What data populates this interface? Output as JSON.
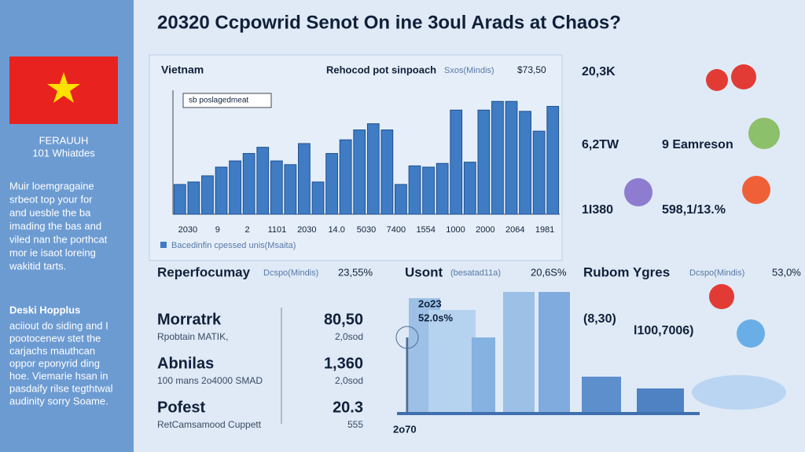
{
  "title": "20320 Ccpowrid Senot On ine 3oul Arads at Chaos?",
  "sidebar": {
    "caption": [
      "FERAUUH",
      "101 Whiatdes"
    ],
    "paragraph1": [
      "Muir loemgragaine",
      "srbeot top your for",
      "and uesble the ba",
      "imading the bas and",
      "viled nan the porthcat",
      "mor ie isaot loreing",
      "wakitid tarts."
    ],
    "heading2": "Deski Hopplus",
    "paragraph2": [
      "aciiout do siding and I",
      "pootocenew stet the",
      "carjachs mauthcan",
      "oppor eponyrid ding",
      "hoe. Viemarie hsan in",
      "pasdaify rilse tegthtwal",
      "audinity sorry Soame."
    ]
  },
  "chart_data": {
    "type": "bar",
    "label_left": "Vietnam",
    "label_center": "Rehocod pot sinpoach",
    "label_unit": "Sxos(Mindis)",
    "label_value": "$73,50",
    "inset_label": "sb poslagedmeat",
    "legend": "Bacedinfin cpessed unis(Msaita)",
    "color": "#3f7cc4",
    "ylim": [
      0,
      100
    ],
    "values": [
      24,
      26,
      31,
      38,
      43,
      49,
      54,
      43,
      40,
      57,
      26,
      49,
      60,
      68,
      73,
      68,
      24,
      39,
      38,
      41,
      84,
      42,
      84,
      91,
      91,
      83,
      67,
      87
    ],
    "x_axis_labels": [
      "2030",
      "9",
      "2",
      "1101",
      "2030",
      "14.0",
      "5030",
      "7400",
      "1554",
      "1000",
      "2000",
      "2064",
      "1981"
    ]
  },
  "sections": [
    {
      "title": "Reperfocumay",
      "unit": "Dcspo(Mindis)",
      "value": "23,55%"
    },
    {
      "title": "Usont",
      "unit": "(besatad11a)",
      "value": "20,6S%"
    },
    {
      "title": "Rubom Ygres",
      "unit": "Dcspo(Mindis)",
      "value": "53,0%"
    }
  ],
  "stats": [
    {
      "name": "Morratrk",
      "desc": "Rpobtain MATIK,",
      "value": "80,50",
      "sub": "2,0sod"
    },
    {
      "name": "Abnilas",
      "desc": "100 mans 2o4000 SMAD",
      "value": "1,360",
      "sub": "2,0sod"
    },
    {
      "name": "Pofest",
      "desc": "RetCamsamood Cuppett",
      "value": "20.3",
      "sub": "555"
    }
  ],
  "city_labels": [
    "2o23",
    "52.0s%",
    "2o70"
  ],
  "right_stats": [
    "20,3K",
    "6,2TW",
    "9 Eamreson",
    "1I380",
    "598,1/13.%",
    "(8,30)",
    "l100,7006)"
  ]
}
